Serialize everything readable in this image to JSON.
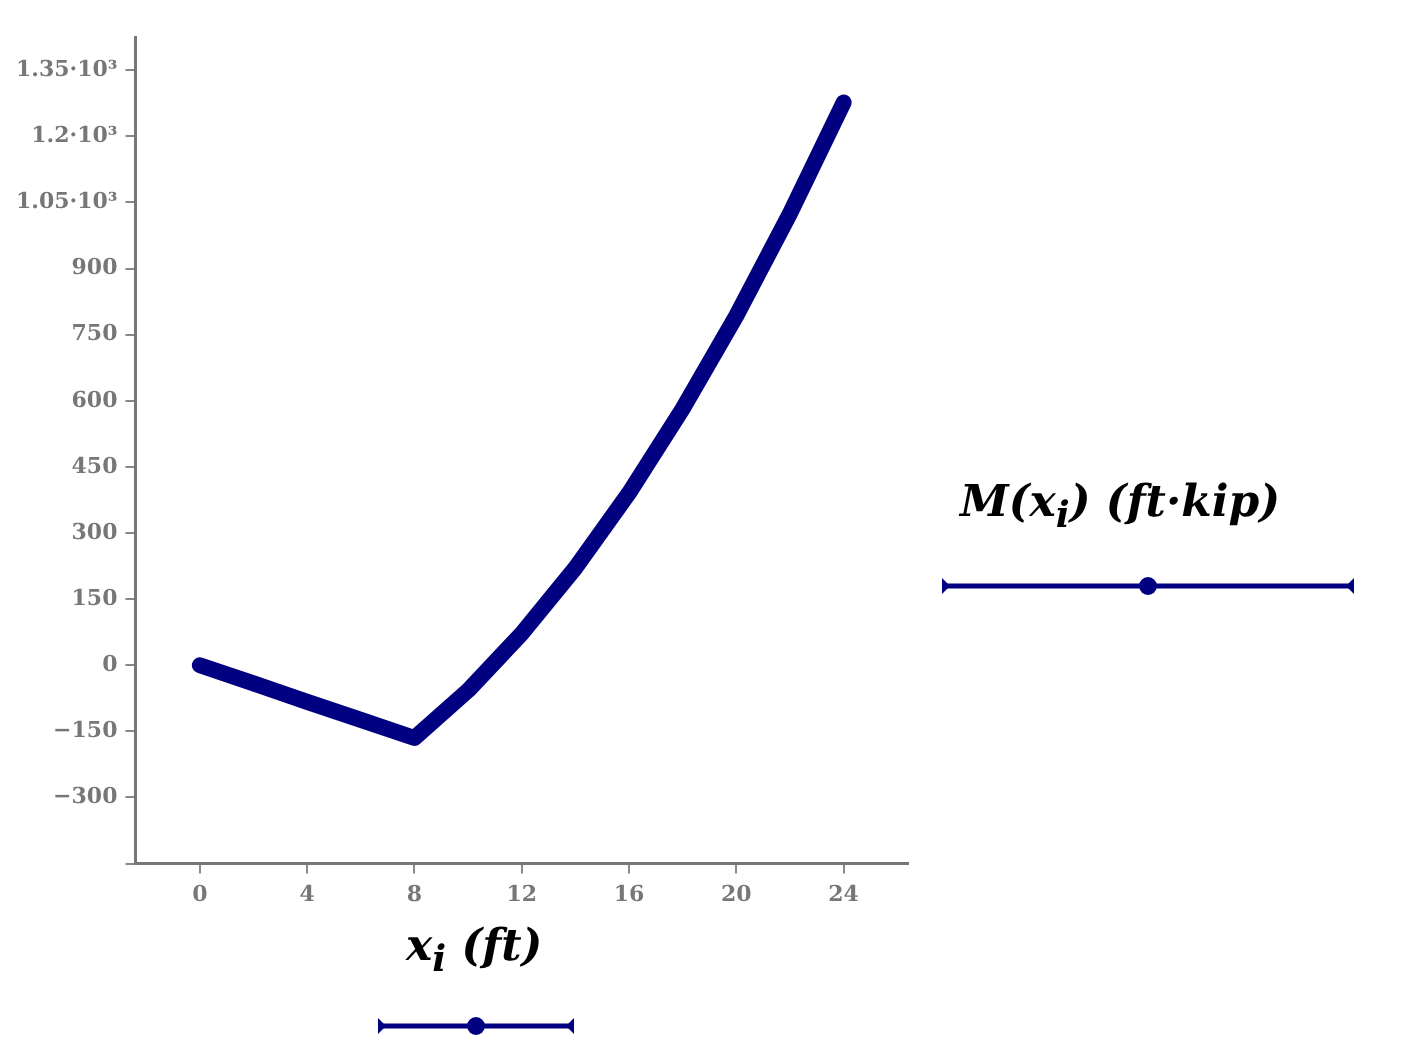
{
  "chart_data": {
    "type": "line",
    "xlabel": "x$_{i}$ (ft)",
    "ylabel": "M(x$_{i}$) (ft·kip)",
    "x": [
      0,
      2,
      4,
      6,
      8,
      10,
      12,
      14,
      16,
      18,
      20,
      22,
      24
    ],
    "series": [
      {
        "color": "#000080",
        "values": [
          0,
          -41,
          -83,
          -124,
          -165,
          -57,
          72,
          221,
          391,
          582,
          793,
          1025,
          1277
        ]
      }
    ],
    "xlim": [
      -2.4,
      26.4
    ],
    "xticks": [
      0,
      4,
      8,
      12,
      16,
      20,
      24
    ],
    "ylim": [
      -450,
      1425
    ],
    "yticks": [
      {
        "value": -450,
        "label": null
      },
      -300,
      -150,
      0,
      150,
      300,
      450,
      600,
      750,
      900,
      {
        "value": 1050,
        "label": "1.05·10³"
      },
      {
        "value": 1200,
        "label": "1.2·10³"
      },
      {
        "value": 1350,
        "label": "1.35·10³"
      }
    ],
    "grid": false,
    "legend": false,
    "marker": "none",
    "line_style": "solid"
  }
}
